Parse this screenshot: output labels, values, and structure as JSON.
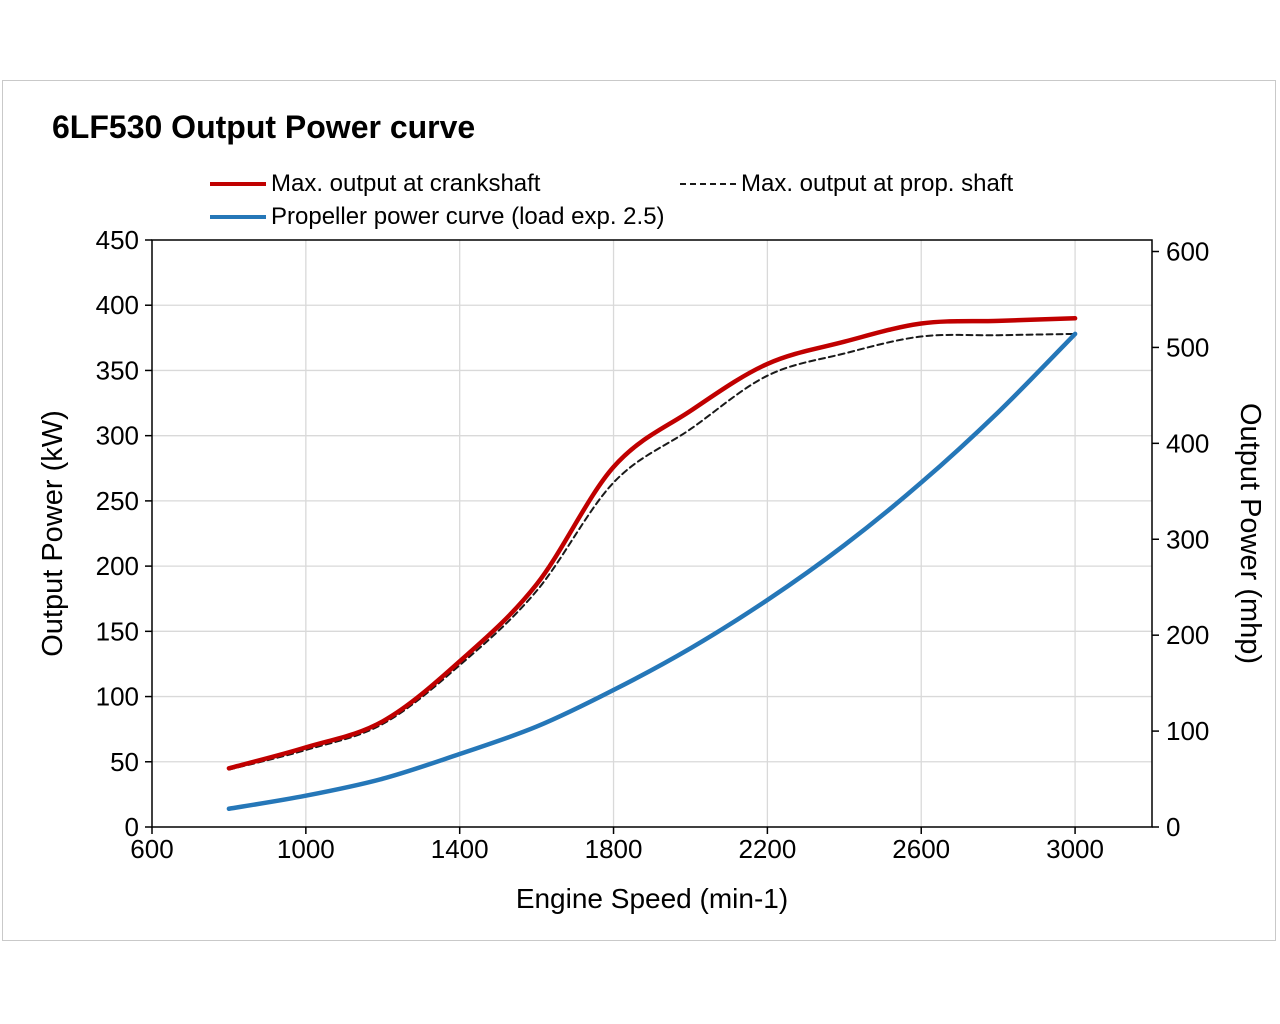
{
  "page": {
    "title": "6LF530 Output Power curve"
  },
  "legend": [
    {
      "id": "crankshaft",
      "label": "Max. output at crankshaft",
      "style": "solid",
      "color": "#c00000"
    },
    {
      "id": "propshaft",
      "label": "Max. output at prop. shaft",
      "style": "dashed",
      "color": "#1a1a1a"
    },
    {
      "id": "propeller",
      "label": "Propeller power curve (load exp. 2.5)",
      "style": "solid",
      "color": "#2577b8"
    }
  ],
  "chart_data": {
    "type": "line",
    "title": "6LF530 Output Power curve",
    "xlabel": "Engine Speed (min-1)",
    "ylabel_left": "Output Power (kW)",
    "ylabel_right": "Output Power (mhp)",
    "xlim": [
      600,
      3200
    ],
    "ylim_left_kw": [
      0,
      450
    ],
    "ylim_right_mhp": [
      0,
      612
    ],
    "x_ticks": [
      600,
      1000,
      1400,
      1800,
      2200,
      2600,
      3000
    ],
    "y_ticks_left_kw": [
      0,
      50,
      100,
      150,
      200,
      250,
      300,
      350,
      400,
      450
    ],
    "y_ticks_right_mhp": [
      0,
      100,
      200,
      300,
      400,
      500,
      600
    ],
    "grid": true,
    "legend_position": "top",
    "x": [
      800,
      1000,
      1200,
      1400,
      1600,
      1800,
      2000,
      2200,
      2400,
      2600,
      2800,
      3000
    ],
    "series": [
      {
        "name": "Max. output at crankshaft",
        "style": "solid",
        "color": "#c00000",
        "width": 4.5,
        "values_kw": [
          45,
          61,
          81,
          127,
          186,
          276,
          319,
          355,
          372,
          386,
          388,
          390
        ]
      },
      {
        "name": "Max. output at prop. shaft",
        "style": "dashed",
        "color": "#1a1a1a",
        "width": 2,
        "values_kw": [
          44,
          59,
          79,
          124,
          181,
          264,
          305,
          346,
          363,
          376,
          377,
          378
        ]
      },
      {
        "name": "Propeller power curve (load exp. 2.5)",
        "style": "solid",
        "color": "#2577b8",
        "width": 4.5,
        "values_kw": [
          14,
          24,
          37,
          56,
          77,
          105,
          137,
          174,
          216,
          264,
          318,
          378
        ]
      }
    ],
    "colors": {
      "grid": "#d9d9d9",
      "frame": "#000000",
      "tick": "#000000",
      "text": "#000000"
    }
  }
}
